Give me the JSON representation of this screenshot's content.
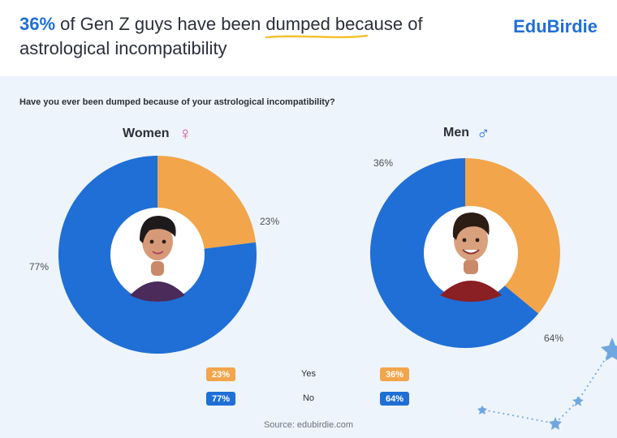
{
  "header": {
    "title_accent": "36%",
    "title_rest_line1": " of Gen Z guys have been dumped because of",
    "title_line2": "astrological incompatibility",
    "brand": "EduBirdie"
  },
  "question": "Have you ever been dumped because of your astrological incompatibility?",
  "source": "Source: edubirdie.com",
  "colors": {
    "yes": "#f2a54a",
    "no": "#1f6fd6",
    "women_symbol": "#d04b9c",
    "men_symbol": "#1f6fd6"
  },
  "icons": {
    "women": "female-symbol-icon",
    "men": "male-symbol-icon",
    "decor": "constellation-stars-icon"
  },
  "chart_data": [
    {
      "type": "pie",
      "title": "Women",
      "categories": [
        "Yes",
        "No"
      ],
      "values": [
        23,
        77
      ],
      "labels": [
        "23%",
        "77%"
      ],
      "style": "donut"
    },
    {
      "type": "pie",
      "title": "Men",
      "categories": [
        "Yes",
        "No"
      ],
      "values": [
        36,
        64
      ],
      "labels": [
        "36%",
        "64%"
      ],
      "style": "donut"
    }
  ],
  "legend": {
    "yes_label": "Yes",
    "no_label": "No",
    "women_yes": "23%",
    "women_no": "77%",
    "men_yes": "36%",
    "men_no": "64%"
  }
}
